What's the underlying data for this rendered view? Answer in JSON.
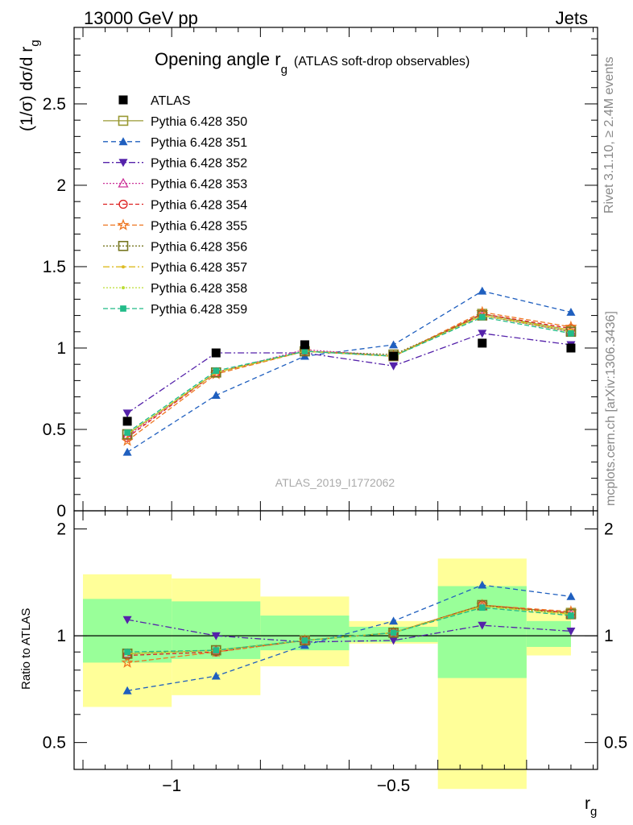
{
  "header": {
    "left": "13000 GeV pp",
    "right": "Jets"
  },
  "side_texts": {
    "rivet": "Rivet 3.1.10, ≥ 2.4M events",
    "mcplots": "mcplots.cern.ch [arXiv:1306.3436]"
  },
  "watermark": "ATLAS_2019_I1772062",
  "colors": {
    "atlas": "#000000",
    "band_inner": "#99ff99",
    "band_outer": "#ffff99"
  },
  "chart_data": [
    {
      "type": "line",
      "panel": "main",
      "title_main": "Opening angle r",
      "title_sub": "g",
      "title_suffix": "(ATLAS soft-drop observables)",
      "ylabel": "(1/σ) dσ/d r",
      "ylabel_sub": "g",
      "ylim": [
        0,
        2.97
      ],
      "yticks": [
        0,
        0.5,
        1,
        1.5,
        2,
        2.5
      ],
      "ytick_labels": [
        "0",
        "0.5",
        "1",
        "1.5",
        "2",
        "2.5"
      ],
      "x": [
        -1.1,
        -0.9,
        -0.7,
        -0.5,
        -0.3,
        -0.1
      ],
      "series": [
        {
          "name": "ATLAS",
          "color": "#000000",
          "marker": "square-filled",
          "dash": "none",
          "values": [
            0.55,
            0.97,
            1.02,
            0.95,
            1.03,
            1.0
          ]
        },
        {
          "name": "Pythia 6.428 350",
          "color": "#999933",
          "marker": "square-open",
          "dash": "solid",
          "values": [
            0.47,
            0.85,
            0.98,
            0.95,
            1.21,
            1.11
          ]
        },
        {
          "name": "Pythia 6.428 351",
          "color": "#1f5fbf",
          "marker": "triangle-filled",
          "dash": "6,4",
          "values": [
            0.36,
            0.71,
            0.95,
            1.02,
            1.35,
            1.22
          ]
        },
        {
          "name": "Pythia 6.428 352",
          "color": "#5522aa",
          "marker": "triangle-down-filled",
          "dash": "8,3,2,3",
          "values": [
            0.6,
            0.97,
            0.97,
            0.89,
            1.09,
            1.02
          ]
        },
        {
          "name": "Pythia 6.428 353",
          "color": "#cc3399",
          "marker": "triangle-open",
          "dash": "2,2",
          "values": [
            0.46,
            0.85,
            0.99,
            0.95,
            1.2,
            1.1
          ]
        },
        {
          "name": "Pythia 6.428 354",
          "color": "#dd2222",
          "marker": "circle-open",
          "dash": "5,3",
          "values": [
            0.45,
            0.85,
            0.98,
            0.95,
            1.21,
            1.12
          ]
        },
        {
          "name": "Pythia 6.428 355",
          "color": "#ee7722",
          "marker": "star-open",
          "dash": "6,3",
          "values": [
            0.43,
            0.84,
            0.98,
            0.95,
            1.22,
            1.13
          ]
        },
        {
          "name": "Pythia 6.428 356",
          "color": "#777722",
          "marker": "square-open",
          "dash": "2,2",
          "values": [
            0.47,
            0.85,
            0.98,
            0.96,
            1.2,
            1.1
          ]
        },
        {
          "name": "Pythia 6.428 357",
          "color": "#ddbb22",
          "marker": "dot",
          "dash": "8,3,2,3",
          "values": [
            0.47,
            0.85,
            0.98,
            0.95,
            1.2,
            1.11
          ]
        },
        {
          "name": "Pythia 6.428 358",
          "color": "#bbdd33",
          "marker": "dot",
          "dash": "2,2",
          "values": [
            0.47,
            0.85,
            0.98,
            0.95,
            1.2,
            1.1
          ]
        },
        {
          "name": "Pythia 6.428 359",
          "color": "#22bb88",
          "marker": "square-small",
          "dash": "6,3",
          "values": [
            0.48,
            0.86,
            0.98,
            0.95,
            1.19,
            1.09
          ]
        }
      ]
    },
    {
      "type": "line",
      "panel": "ratio",
      "ylabel": "Ratio to ATLAS",
      "xlabel": "r",
      "xlabel_sub": "g",
      "xlim": [
        -1.22,
        -0.04
      ],
      "xticks": [
        -1,
        -0.5
      ],
      "xtick_labels": [
        "−1",
        "−0.5"
      ],
      "ylim": [
        0.42,
        2.25
      ],
      "yticks": [
        0.5,
        1,
        2
      ],
      "ytick_labels": [
        "0.5",
        "1",
        "2"
      ],
      "bin_edges": [
        -1.2,
        -1.0,
        -0.8,
        -0.6,
        -0.4,
        -0.2,
        -0.1
      ],
      "band_inner": [
        [
          0.84,
          1.27
        ],
        [
          0.86,
          1.25
        ],
        [
          0.91,
          1.14
        ],
        [
          0.96,
          1.06
        ],
        [
          0.76,
          1.38
        ],
        [
          0.93,
          1.1
        ]
      ],
      "band_outer": [
        [
          0.63,
          1.49
        ],
        [
          0.68,
          1.45
        ],
        [
          0.82,
          1.29
        ],
        [
          0.95,
          1.1
        ],
        [
          0.37,
          1.65
        ],
        [
          0.88,
          1.17
        ]
      ],
      "x": [
        -1.1,
        -0.9,
        -0.7,
        -0.5,
        -0.3,
        -0.1
      ],
      "series": [
        {
          "name": "Pythia 6.428 350",
          "values": [
            0.89,
            0.91,
            0.97,
            1.02,
            1.22,
            1.16
          ]
        },
        {
          "name": "Pythia 6.428 351",
          "values": [
            0.7,
            0.77,
            0.94,
            1.1,
            1.39,
            1.29
          ]
        },
        {
          "name": "Pythia 6.428 352",
          "values": [
            1.11,
            1.0,
            0.96,
            0.97,
            1.07,
            1.03
          ]
        },
        {
          "name": "Pythia 6.428 353",
          "values": [
            0.89,
            0.91,
            0.97,
            1.02,
            1.21,
            1.15
          ]
        },
        {
          "name": "Pythia 6.428 354",
          "values": [
            0.88,
            0.9,
            0.97,
            1.02,
            1.22,
            1.16
          ]
        },
        {
          "name": "Pythia 6.428 355",
          "values": [
            0.84,
            0.9,
            0.97,
            1.02,
            1.22,
            1.17
          ]
        },
        {
          "name": "Pythia 6.428 356",
          "values": [
            0.89,
            0.91,
            0.97,
            1.02,
            1.22,
            1.15
          ]
        },
        {
          "name": "Pythia 6.428 357",
          "values": [
            0.89,
            0.91,
            0.97,
            1.02,
            1.21,
            1.15
          ]
        },
        {
          "name": "Pythia 6.428 358",
          "values": [
            0.89,
            0.91,
            0.97,
            1.02,
            1.21,
            1.15
          ]
        },
        {
          "name": "Pythia 6.428 359",
          "values": [
            0.9,
            0.91,
            0.97,
            1.02,
            1.2,
            1.14
          ]
        }
      ]
    }
  ]
}
